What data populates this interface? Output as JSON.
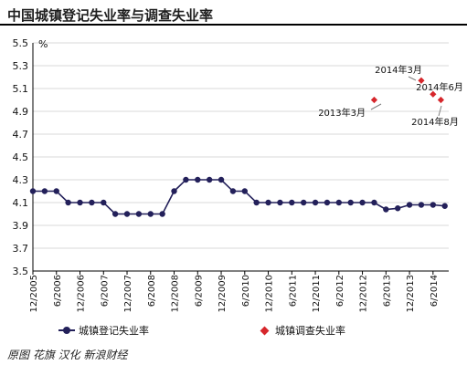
{
  "title": "中国城镇登记失业率与调查失业率",
  "source_note": "原图 花旗  汉化 新浪财经",
  "colors": {
    "registered": "#23205a",
    "survey": "#d6262b",
    "grid": "#d9d9d9",
    "axis": "#000000"
  },
  "chart_data": {
    "type": "line",
    "title": "中国城镇登记失业率与调查失业率",
    "ylabel": "%",
    "xlabel": "",
    "ylim": [
      3.5,
      5.5
    ],
    "yticks": [
      "3.5",
      "3.7",
      "3.9",
      "4.1",
      "4.3",
      "4.5",
      "4.7",
      "4.9",
      "5.1",
      "5.3",
      "5.5"
    ],
    "x_tick_labels": [
      "12/2005",
      "6/2006",
      "12/2006",
      "6/2007",
      "12/2007",
      "6/2008",
      "12/2008",
      "6/2009",
      "12/2009",
      "6/2010",
      "12/2010",
      "6/2011",
      "12/2011",
      "6/2012",
      "12/2012",
      "6/2013",
      "12/2013",
      "6/2014"
    ],
    "grid": "horizontal",
    "legend_position": "bottom",
    "series": [
      {
        "name": "城镇登记失业率",
        "kind": "line-marker",
        "x": [
          "2005-12",
          "2006-03",
          "2006-06",
          "2006-09",
          "2006-12",
          "2007-03",
          "2007-06",
          "2007-09",
          "2007-12",
          "2008-03",
          "2008-06",
          "2008-09",
          "2008-12",
          "2009-03",
          "2009-06",
          "2009-09",
          "2009-12",
          "2010-03",
          "2010-06",
          "2010-09",
          "2010-12",
          "2011-03",
          "2011-06",
          "2011-09",
          "2011-12",
          "2012-03",
          "2012-06",
          "2012-09",
          "2012-12",
          "2013-03",
          "2013-06",
          "2013-09",
          "2013-12",
          "2014-03",
          "2014-06",
          "2014-09"
        ],
        "values": [
          4.2,
          4.2,
          4.2,
          4.1,
          4.1,
          4.1,
          4.1,
          4.0,
          4.0,
          4.0,
          4.0,
          4.0,
          4.2,
          4.3,
          4.3,
          4.3,
          4.3,
          4.2,
          4.2,
          4.1,
          4.1,
          4.1,
          4.1,
          4.1,
          4.1,
          4.1,
          4.1,
          4.1,
          4.1,
          4.1,
          4.04,
          4.05,
          4.08,
          4.08,
          4.08,
          4.07
        ]
      },
      {
        "name": "城镇调查失业率",
        "kind": "diamond",
        "x": [
          "2013-03",
          "2014-03",
          "2014-06",
          "2014-08"
        ],
        "values": [
          5.0,
          5.17,
          5.05,
          5.0
        ],
        "point_labels": [
          "2013年3月",
          "2014年3月",
          "2014年6月",
          "2014年8月"
        ]
      }
    ]
  }
}
